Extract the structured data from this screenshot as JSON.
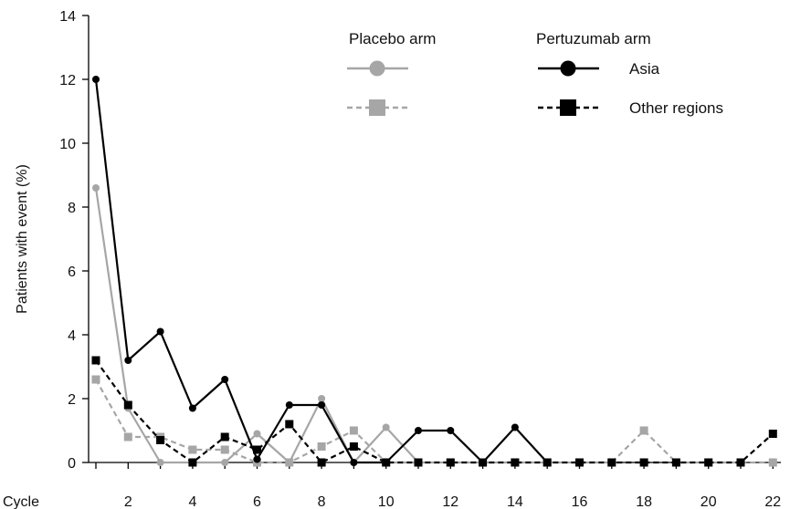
{
  "chart_data": {
    "type": "line",
    "ylabel": "Patients with event (%)",
    "xlabel": "Cycle",
    "ylim": [
      0,
      14
    ],
    "xlim": [
      1,
      22
    ],
    "yticks": [
      "0",
      "2",
      "4",
      "6",
      "8",
      "10",
      "12",
      "14"
    ],
    "xticks": [
      "2",
      "4",
      "6",
      "8",
      "10",
      "12",
      "14",
      "16",
      "18",
      "20",
      "22"
    ],
    "legend": {
      "placebo_header": "Placebo arm",
      "pertuzumab_header": "Pertuzumab arm",
      "row1_label": "Asia",
      "row2_label": "Other regions"
    },
    "colors": {
      "placebo": "#a6a6a6",
      "pertuzumab": "#000000"
    },
    "series": [
      {
        "arm": "Placebo arm",
        "region": "Asia",
        "marker": "circle",
        "dash": "solid",
        "color": "#a6a6a6",
        "x": [
          1,
          2,
          3,
          4,
          5,
          6,
          7,
          8,
          9,
          10,
          11
        ],
        "y": [
          8.6,
          1.7,
          0,
          0,
          0,
          0.9,
          0,
          2.0,
          0,
          1.1,
          0
        ]
      },
      {
        "arm": "Placebo arm",
        "region": "Other regions",
        "marker": "square",
        "dash": "dashed",
        "color": "#a6a6a6",
        "x": [
          1,
          2,
          3,
          4,
          5,
          6,
          7,
          8,
          9,
          10,
          11,
          12,
          13,
          14,
          15,
          16,
          17,
          18,
          19,
          20,
          21,
          22
        ],
        "y": [
          2.6,
          0.8,
          0.8,
          0.4,
          0.4,
          0,
          0,
          0.5,
          1.0,
          0,
          0,
          0,
          0,
          0,
          0,
          0,
          0,
          1.0,
          0,
          0,
          0,
          0
        ]
      },
      {
        "arm": "Pertuzumab arm",
        "region": "Asia",
        "marker": "circle",
        "dash": "solid",
        "color": "#000000",
        "x": [
          1,
          2,
          3,
          4,
          5,
          6,
          7,
          8,
          9,
          10,
          11,
          12,
          13,
          14,
          15
        ],
        "y": [
          12.0,
          3.2,
          4.1,
          1.7,
          2.6,
          0.1,
          1.8,
          1.8,
          0,
          0,
          1.0,
          1.0,
          0,
          1.1,
          0
        ]
      },
      {
        "arm": "Pertuzumab arm",
        "region": "Other regions",
        "marker": "square",
        "dash": "dashed",
        "color": "#000000",
        "x": [
          1,
          2,
          3,
          4,
          5,
          6,
          7,
          8,
          9,
          10,
          11,
          12,
          13,
          14,
          15,
          16,
          17,
          18,
          19,
          20,
          21,
          22
        ],
        "y": [
          3.2,
          1.8,
          0.7,
          0,
          0.8,
          0.4,
          1.2,
          0,
          0.5,
          0,
          0,
          0,
          0,
          0,
          0,
          0,
          0,
          0,
          0,
          0,
          0,
          0.9
        ]
      }
    ]
  }
}
